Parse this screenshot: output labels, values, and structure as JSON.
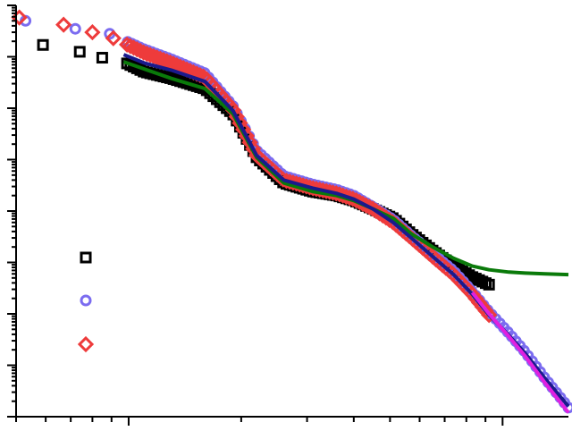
{
  "chart_data": {
    "type": "scatter",
    "title": "",
    "xlabel": "",
    "ylabel": "",
    "x_scale": "log",
    "y_scale": "log",
    "xlim": [
      0.005,
      0.15
    ],
    "ylim": [
      1e-06,
      100
    ],
    "grid": false,
    "legend_placement": "left",
    "legend_entries": [
      {
        "marker": "square",
        "color": "#000000",
        "label": ""
      },
      {
        "marker": "circle",
        "color": "#7b6cf0",
        "label": ""
      },
      {
        "marker": "diamond",
        "color": "#ee3b3b",
        "label": ""
      }
    ],
    "series": [
      {
        "marker": "square",
        "color": "#000000",
        "x": [
          0.0059,
          0.0074,
          0.0085,
          0.0097,
          0.011,
          0.013,
          0.016,
          0.019,
          0.022,
          0.026,
          0.031,
          0.036,
          0.04,
          0.045,
          0.051,
          0.057,
          0.065,
          0.074,
          0.083,
          0.092
        ],
        "y": [
          17.0,
          12.5,
          9.6,
          8.0,
          5.1,
          3.8,
          2.4,
          0.78,
          0.11,
          0.035,
          0.024,
          0.02,
          0.016,
          0.011,
          0.0072,
          0.0036,
          0.0017,
          0.00085,
          0.00052,
          0.00037
        ]
      },
      {
        "marker": "circle",
        "color": "#7b6cf0",
        "x": [
          0.0053,
          0.0072,
          0.0089,
          0.011,
          0.013,
          0.016,
          0.019,
          0.022,
          0.026,
          0.031,
          0.036,
          0.04,
          0.045,
          0.051,
          0.057,
          0.065,
          0.074,
          0.083,
          0.092,
          0.104,
          0.115,
          0.13,
          0.15
        ],
        "y": [
          50.0,
          35.0,
          28.0,
          14.0,
          9.0,
          4.8,
          1.1,
          0.15,
          0.048,
          0.033,
          0.026,
          0.02,
          0.012,
          0.0068,
          0.0033,
          0.0015,
          0.00068,
          0.00027,
          0.00011,
          4.2e-05,
          1.8e-05,
          5.5e-06,
          1.5e-06
        ]
      },
      {
        "marker": "diamond",
        "color": "#ee3b3b",
        "x": [
          0.0051,
          0.0067,
          0.008,
          0.0091,
          0.011,
          0.013,
          0.016,
          0.019,
          0.022,
          0.026,
          0.031,
          0.036,
          0.04,
          0.045,
          0.051,
          0.057,
          0.065,
          0.074,
          0.083,
          0.092
        ],
        "y": [
          58.0,
          42.0,
          30.0,
          23.0,
          12.0,
          7.6,
          4.0,
          0.95,
          0.12,
          0.04,
          0.028,
          0.022,
          0.017,
          0.011,
          0.006,
          0.003,
          0.0013,
          0.00058,
          0.00024,
          9.5e-05
        ]
      }
    ],
    "lines": [
      {
        "color": "#0a7a0a",
        "x": [
          0.0097,
          0.013,
          0.016,
          0.019,
          0.022,
          0.026,
          0.031,
          0.036,
          0.04,
          0.045,
          0.051,
          0.057,
          0.065,
          0.074,
          0.083,
          0.092,
          0.104,
          0.115,
          0.13,
          0.15
        ],
        "y": [
          8.0,
          3.8,
          2.4,
          0.78,
          0.11,
          0.035,
          0.024,
          0.02,
          0.016,
          0.011,
          0.0072,
          0.0036,
          0.002,
          0.0012,
          0.00085,
          0.00072,
          0.00065,
          0.00062,
          0.0006,
          0.00058
        ]
      },
      {
        "color": "#1a1a8c",
        "x": [
          0.0097,
          0.011,
          0.013,
          0.016,
          0.019,
          0.022,
          0.026,
          0.031,
          0.036,
          0.04,
          0.045,
          0.051,
          0.057,
          0.065,
          0.074,
          0.083,
          0.092,
          0.104,
          0.115,
          0.13,
          0.15
        ],
        "y": [
          11.0,
          7.6,
          5.5,
          3.3,
          0.9,
          0.12,
          0.04,
          0.028,
          0.022,
          0.017,
          0.011,
          0.006,
          0.003,
          0.0013,
          0.00058,
          0.00024,
          9.5e-05,
          3.8e-05,
          1.7e-05,
          5.5e-06,
          1.6e-06
        ]
      },
      {
        "color": "#e020e0",
        "x": [
          0.083,
          0.092,
          0.104,
          0.115,
          0.13,
          0.15
        ],
        "y": [
          0.00026,
          0.0001,
          3.6e-05,
          1.5e-05,
          4.5e-06,
          1.2e-06
        ]
      }
    ]
  }
}
